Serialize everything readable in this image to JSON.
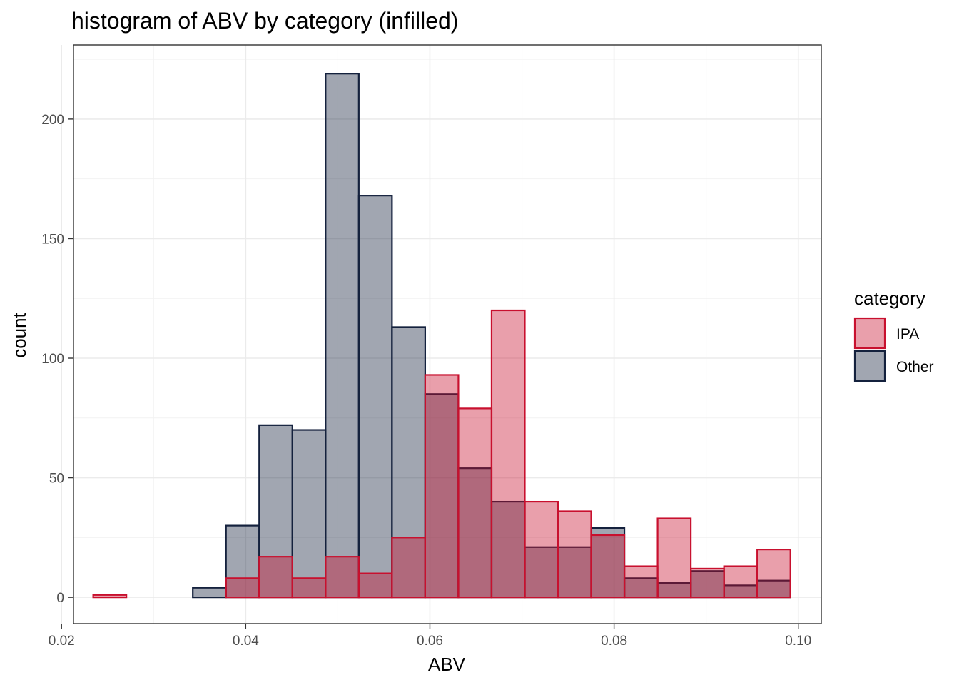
{
  "chart_data": {
    "type": "bar",
    "subtype": "histogram-overlaid",
    "title": "histogram of ABV by category (infilled)",
    "xlabel": "ABV",
    "ylabel": "count",
    "xlim": [
      0.0213,
      0.1025
    ],
    "ylim": [
      -11,
      231
    ],
    "x_ticks": [
      {
        "value": 0.02,
        "label": "0.02"
      },
      {
        "value": 0.04,
        "label": "0.04"
      },
      {
        "value": 0.06,
        "label": "0.06"
      },
      {
        "value": 0.08,
        "label": "0.08"
      },
      {
        "value": 0.1,
        "label": "0.10"
      }
    ],
    "y_ticks": [
      {
        "value": 0,
        "label": "0"
      },
      {
        "value": 50,
        "label": "50"
      },
      {
        "value": 100,
        "label": "100"
      },
      {
        "value": 150,
        "label": "150"
      },
      {
        "value": 200,
        "label": "200"
      }
    ],
    "bin_start": 0.02344,
    "bin_width": 0.003605,
    "bin_count": 21,
    "grid": true,
    "legend": {
      "title": "category",
      "placement": "right"
    },
    "series": [
      {
        "name": "Other",
        "fill": "#14213d",
        "stroke": "#14213d",
        "fill_opacity": 0.4,
        "counts": [
          0,
          0,
          0,
          4,
          30,
          72,
          70,
          219,
          168,
          113,
          85,
          54,
          40,
          21,
          21,
          29,
          8,
          6,
          11,
          5,
          7
        ]
      },
      {
        "name": "IPA",
        "fill": "#c8102e",
        "stroke": "#c8102e",
        "fill_opacity": 0.4,
        "counts": [
          1,
          0,
          0,
          0,
          8,
          17,
          8,
          17,
          10,
          25,
          93,
          79,
          120,
          40,
          36,
          26,
          13,
          33,
          12,
          13,
          20
        ]
      }
    ]
  }
}
